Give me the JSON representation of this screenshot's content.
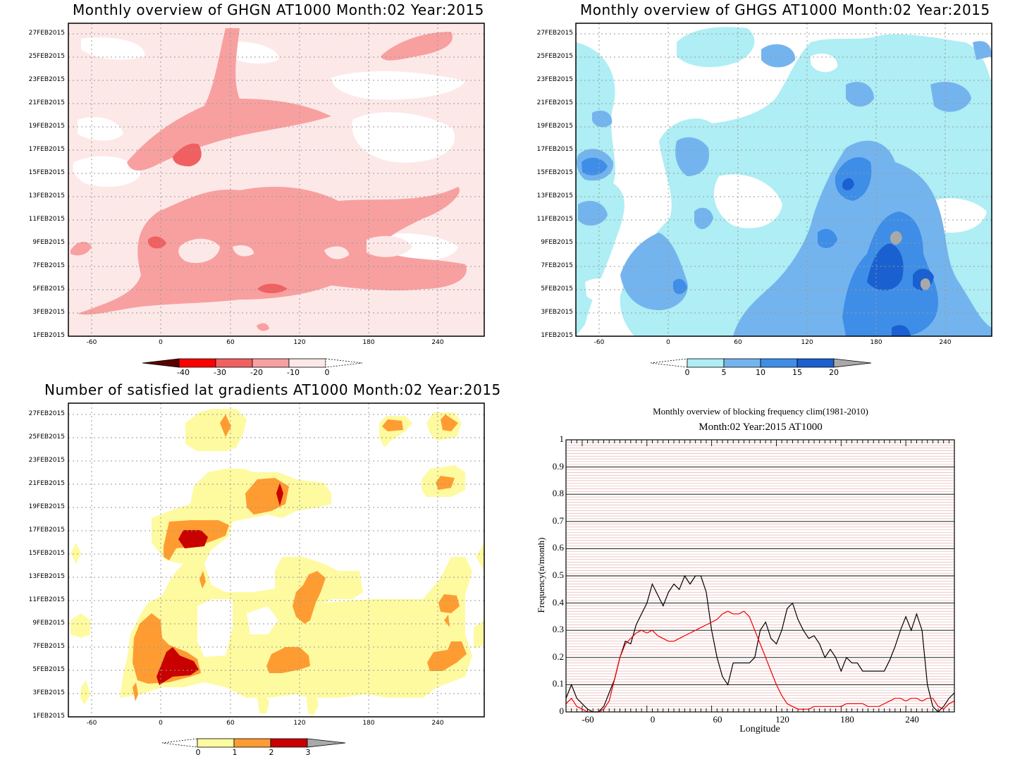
{
  "panels": {
    "ghgn": {
      "title": "Monthly overview of GHGN AT1000 Month:02 Year:2015",
      "colorbar_labels": [
        "-40",
        "-30",
        "-20",
        "-10",
        "0"
      ],
      "colors": [
        "#5a0000",
        "#ff0000",
        "#f06060",
        "#f8a0a0",
        "#fde8e8",
        "#ffffff"
      ]
    },
    "ghgs": {
      "title": "Monthly overview of GHGS AT1000 Month:02 Year:2015",
      "colorbar_labels": [
        "0",
        "5",
        "10",
        "15",
        "20"
      ],
      "colors": [
        "#ffffff",
        "#aeeef4",
        "#74b4ee",
        "#3e8ee8",
        "#1a60d0",
        "#a9a9a9"
      ]
    },
    "lat": {
      "title": "Number of satisfied lat gradients AT1000 Month:02 Year:2015",
      "colorbar_labels": [
        "0",
        "1",
        "2",
        "3"
      ],
      "colors": [
        "#ffffff",
        "#fefaa0",
        "#fe9c32",
        "#c80000",
        "#a9a9a9"
      ]
    },
    "blocking": {
      "title_line1": "Monthly overview of blocking frequency clim(1981-2010)",
      "title_line2": "Month:02 Year:2015  AT1000",
      "ylabel": "Frequency(n/month)",
      "xlabel": "Longitude",
      "y_ticks": [
        "0",
        "0.1",
        "0.2",
        "0.3",
        "0.4",
        "0.5",
        "0.6",
        "0.7",
        "0.8",
        "0.9",
        "1"
      ],
      "x_ticks": [
        "-60",
        "0",
        "60",
        "120",
        "180",
        "240"
      ]
    }
  },
  "date_ticks": [
    "1FEB2015",
    "3FEB2015",
    "5FEB2015",
    "7FEB2015",
    "9FEB2015",
    "11FEB2015",
    "13FEB2015",
    "15FEB2015",
    "17FEB2015",
    "19FEB2015",
    "21FEB2015",
    "23FEB2015",
    "25FEB2015",
    "27FEB2015"
  ],
  "lon_ticks": [
    "-60",
    "0",
    "60",
    "120",
    "180",
    "240"
  ],
  "chart_data": [
    {
      "type": "heatmap",
      "title": "Monthly overview of GHGN AT1000 Month:02 Year:2015",
      "x_range": [
        -75,
        285
      ],
      "y_range": [
        "1FEB2015",
        "28FEB2015"
      ],
      "levels": [
        -40,
        -30,
        -20,
        -10,
        0
      ]
    },
    {
      "type": "heatmap",
      "title": "Monthly overview of GHGS AT1000 Month:02 Year:2015",
      "x_range": [
        -75,
        285
      ],
      "y_range": [
        "1FEB2015",
        "28FEB2015"
      ],
      "levels": [
        0,
        5,
        10,
        15,
        20
      ]
    },
    {
      "type": "heatmap",
      "title": "Number of satisfied lat gradients AT1000 Month:02 Year:2015",
      "x_range": [
        -75,
        285
      ],
      "y_range": [
        "1FEB2015",
        "28FEB2015"
      ],
      "levels": [
        0,
        1,
        2,
        3
      ]
    },
    {
      "type": "line",
      "title": "Monthly overview of blocking frequency clim(1981-2010)",
      "subtitle": "Month:02 Year:2015  AT1000",
      "xlabel": "Longitude",
      "ylabel": "Frequency(n/month)",
      "xlim": [
        -75,
        285
      ],
      "ylim": [
        0,
        1
      ],
      "series": [
        {
          "color": "#000000",
          "x": [
            -75,
            -70,
            -65,
            -60,
            -55,
            -50,
            -45,
            -40,
            -35,
            -30,
            -25,
            -20,
            -15,
            -10,
            -5,
            0,
            5,
            10,
            15,
            20,
            25,
            30,
            35,
            40,
            45,
            50,
            55,
            60,
            65,
            70,
            75,
            80,
            85,
            90,
            95,
            100,
            105,
            110,
            115,
            120,
            125,
            130,
            135,
            140,
            145,
            150,
            155,
            160,
            165,
            170,
            175,
            180,
            185,
            190,
            195,
            200,
            205,
            210,
            215,
            220,
            225,
            230,
            235,
            240,
            245,
            250,
            255,
            260,
            265,
            270,
            275,
            280,
            285
          ],
          "values": [
            0.05,
            0.1,
            0.05,
            0.03,
            0.01,
            0.0,
            0.0,
            0.02,
            0.07,
            0.12,
            0.2,
            0.26,
            0.25,
            0.32,
            0.36,
            0.4,
            0.47,
            0.43,
            0.39,
            0.44,
            0.47,
            0.45,
            0.5,
            0.47,
            0.5,
            0.5,
            0.44,
            0.3,
            0.2,
            0.13,
            0.1,
            0.18,
            0.18,
            0.18,
            0.18,
            0.2,
            0.3,
            0.33,
            0.27,
            0.25,
            0.3,
            0.38,
            0.4,
            0.34,
            0.3,
            0.27,
            0.28,
            0.25,
            0.2,
            0.23,
            0.2,
            0.15,
            0.2,
            0.18,
            0.18,
            0.15,
            0.15,
            0.15,
            0.15,
            0.15,
            0.19,
            0.24,
            0.3,
            0.35,
            0.3,
            0.36,
            0.3,
            0.1,
            0.02,
            0.0,
            0.02,
            0.05,
            0.07
          ]
        },
        {
          "color": "#ee0000",
          "x": [
            -75,
            -70,
            -65,
            -60,
            -55,
            -50,
            -45,
            -40,
            -35,
            -30,
            -25,
            -20,
            -15,
            -10,
            -5,
            0,
            5,
            10,
            15,
            20,
            25,
            30,
            35,
            40,
            45,
            50,
            55,
            60,
            65,
            70,
            75,
            80,
            85,
            90,
            95,
            100,
            105,
            110,
            115,
            120,
            125,
            130,
            135,
            140,
            145,
            150,
            155,
            160,
            165,
            170,
            175,
            180,
            185,
            190,
            195,
            200,
            205,
            210,
            215,
            220,
            225,
            230,
            235,
            240,
            245,
            250,
            255,
            260,
            265,
            270,
            275,
            280,
            285
          ],
          "values": [
            0.03,
            0.05,
            0.02,
            0.01,
            0.0,
            0.0,
            0.0,
            0.01,
            0.04,
            0.12,
            0.2,
            0.25,
            0.27,
            0.29,
            0.3,
            0.29,
            0.3,
            0.28,
            0.27,
            0.26,
            0.26,
            0.27,
            0.28,
            0.29,
            0.3,
            0.31,
            0.32,
            0.33,
            0.34,
            0.36,
            0.37,
            0.36,
            0.36,
            0.37,
            0.35,
            0.3,
            0.25,
            0.2,
            0.15,
            0.1,
            0.06,
            0.03,
            0.02,
            0.01,
            0.01,
            0.01,
            0.02,
            0.02,
            0.02,
            0.02,
            0.02,
            0.02,
            0.03,
            0.03,
            0.03,
            0.03,
            0.02,
            0.02,
            0.02,
            0.03,
            0.04,
            0.05,
            0.05,
            0.04,
            0.05,
            0.05,
            0.04,
            0.05,
            0.05,
            0.02,
            0.01,
            0.03,
            0.04
          ]
        }
      ]
    }
  ]
}
